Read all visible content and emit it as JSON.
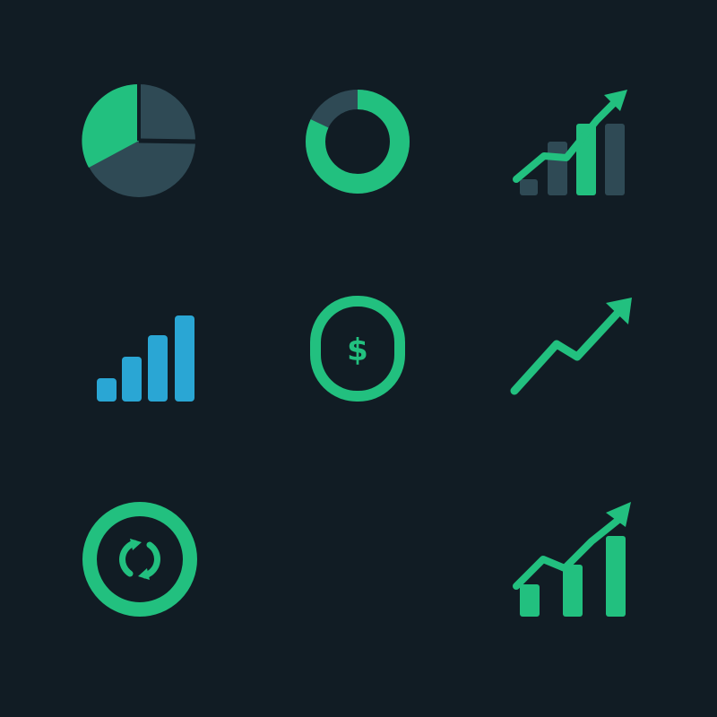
{
  "canvas": {
    "background": "#111c24"
  },
  "palette": {
    "green": "#22c07f",
    "slate": "#2f4a55",
    "blue": "#2aa6d4"
  },
  "icons": [
    {
      "row": 1,
      "col": 1,
      "name": "pie-chart-icon",
      "share_primary": 0.36
    },
    {
      "row": 1,
      "col": 2,
      "name": "donut-chart-icon",
      "share_primary": 0.82
    },
    {
      "row": 1,
      "col": 3,
      "name": "growth-bar-chart-icon"
    },
    {
      "row": 2,
      "col": 1,
      "name": "signal-bars-icon"
    },
    {
      "row": 2,
      "col": 2,
      "name": "dollar-coin-icon",
      "symbol": "$"
    },
    {
      "row": 2,
      "col": 3,
      "name": "trend-up-arrow-icon"
    },
    {
      "row": 3,
      "col": 1,
      "name": "currency-exchange-icon"
    },
    {
      "row": 3,
      "col": 3,
      "name": "bar-chart-trend-icon"
    }
  ]
}
